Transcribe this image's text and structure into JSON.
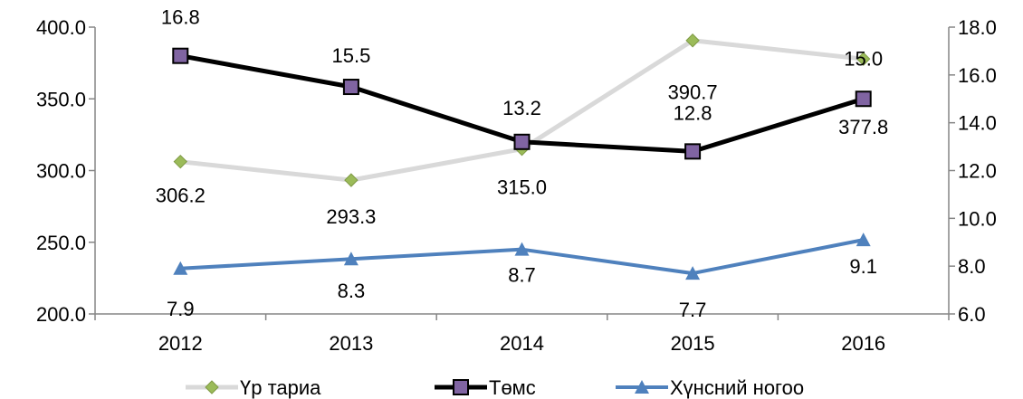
{
  "chart_data": {
    "type": "line",
    "categories": [
      "2012",
      "2013",
      "2014",
      "2015",
      "2016"
    ],
    "left_axis": {
      "range": [
        200,
        400
      ],
      "ticks": [
        200,
        250,
        300,
        350,
        400
      ],
      "tick_labels": [
        "200.0",
        "250.0",
        "300.0",
        "350.0",
        "400.0"
      ]
    },
    "right_axis": {
      "range": [
        6,
        18
      ],
      "ticks": [
        6,
        8,
        10,
        12,
        14,
        16,
        18
      ],
      "tick_labels": [
        "6.0",
        "8.0",
        "10.0",
        "12.0",
        "14.0",
        "16.0",
        "18.0"
      ]
    },
    "grid": false,
    "legend_position": "bottom",
    "series": [
      {
        "name": "Үр тариа",
        "axis": "left",
        "values": [
          306.2,
          293.3,
          315.0,
          390.7,
          377.8
        ],
        "labels": [
          "306.2",
          "293.3",
          "315.0",
          "390.7",
          "377.8"
        ],
        "line_color": "#d9d9d9",
        "marker_color": "#9bbb59",
        "marker": "diamond"
      },
      {
        "name": "Төмс",
        "axis": "right",
        "values": [
          16.8,
          15.5,
          13.2,
          12.8,
          15.0
        ],
        "labels": [
          "16.8",
          "15.5",
          "13.2",
          "12.8",
          "15.0"
        ],
        "line_color": "#000000",
        "marker_color": "#8064a2",
        "marker": "square"
      },
      {
        "name": "Хүнсний ногоо",
        "axis": "right",
        "values": [
          7.9,
          8.3,
          8.7,
          7.7,
          9.1
        ],
        "labels": [
          "7.9",
          "8.3",
          "8.7",
          "7.7",
          "9.1"
        ],
        "line_color": "#4f81bd",
        "marker_color": "#4f81bd",
        "marker": "triangle"
      }
    ]
  }
}
